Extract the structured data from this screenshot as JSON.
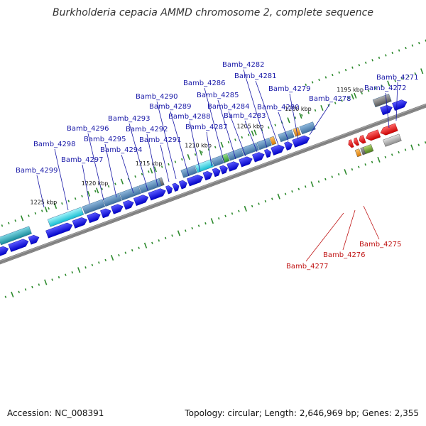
{
  "title": "Burkholderia cepacia AMMD chromosome 2, complete sequence",
  "footer": {
    "accession": "Accession: NC_008391",
    "summary": "Topology: circular; Length: 2,646,969 bp; Genes: 2,355"
  },
  "colors": {
    "backbone": "#888888",
    "forward_gene": "#1010dd",
    "reverse_gene": "#ee1111",
    "label_forward": "#1a1aa8",
    "label_reverse": "#c01515",
    "tick": "#2d8a2d",
    "cds_steel": "#4f86b8",
    "cds_cyan": "#22d6e6",
    "cds_teal": "#20a6b8",
    "cds_orange": "#ee8a10",
    "cds_green": "#3aaa3a",
    "cds_gray": "#777777",
    "cds_olive": "#6a9a2a",
    "cds_lightgray": "#aaaaaa"
  },
  "scale_ticks": [
    "1225 kbp",
    "1220 kbp",
    "1215 kbp",
    "1210 kbp",
    "1205 kbp",
    "1200 kbp",
    "1195 kbp"
  ],
  "genes_forward": [
    "Bamb_4299",
    "Bamb_4298",
    "Bamb_4297",
    "Bamb_4296",
    "Bamb_4295",
    "Bamb_4294",
    "Bamb_4293",
    "Bamb_4292",
    "Bamb_4291",
    "Bamb_4290",
    "Bamb_4289",
    "Bamb_4288",
    "Bamb_4287",
    "Bamb_4286",
    "Bamb_4285",
    "Bamb_4284",
    "Bamb_4283",
    "Bamb_4282",
    "Bamb_4281",
    "Bamb_4280",
    "Bamb_4279",
    "Bamb_4278",
    "Bamb_4272",
    "Bamb_4271"
  ],
  "genes_reverse": [
    "Bamb_4277",
    "Bamb_4276",
    "Bamb_4275"
  ]
}
